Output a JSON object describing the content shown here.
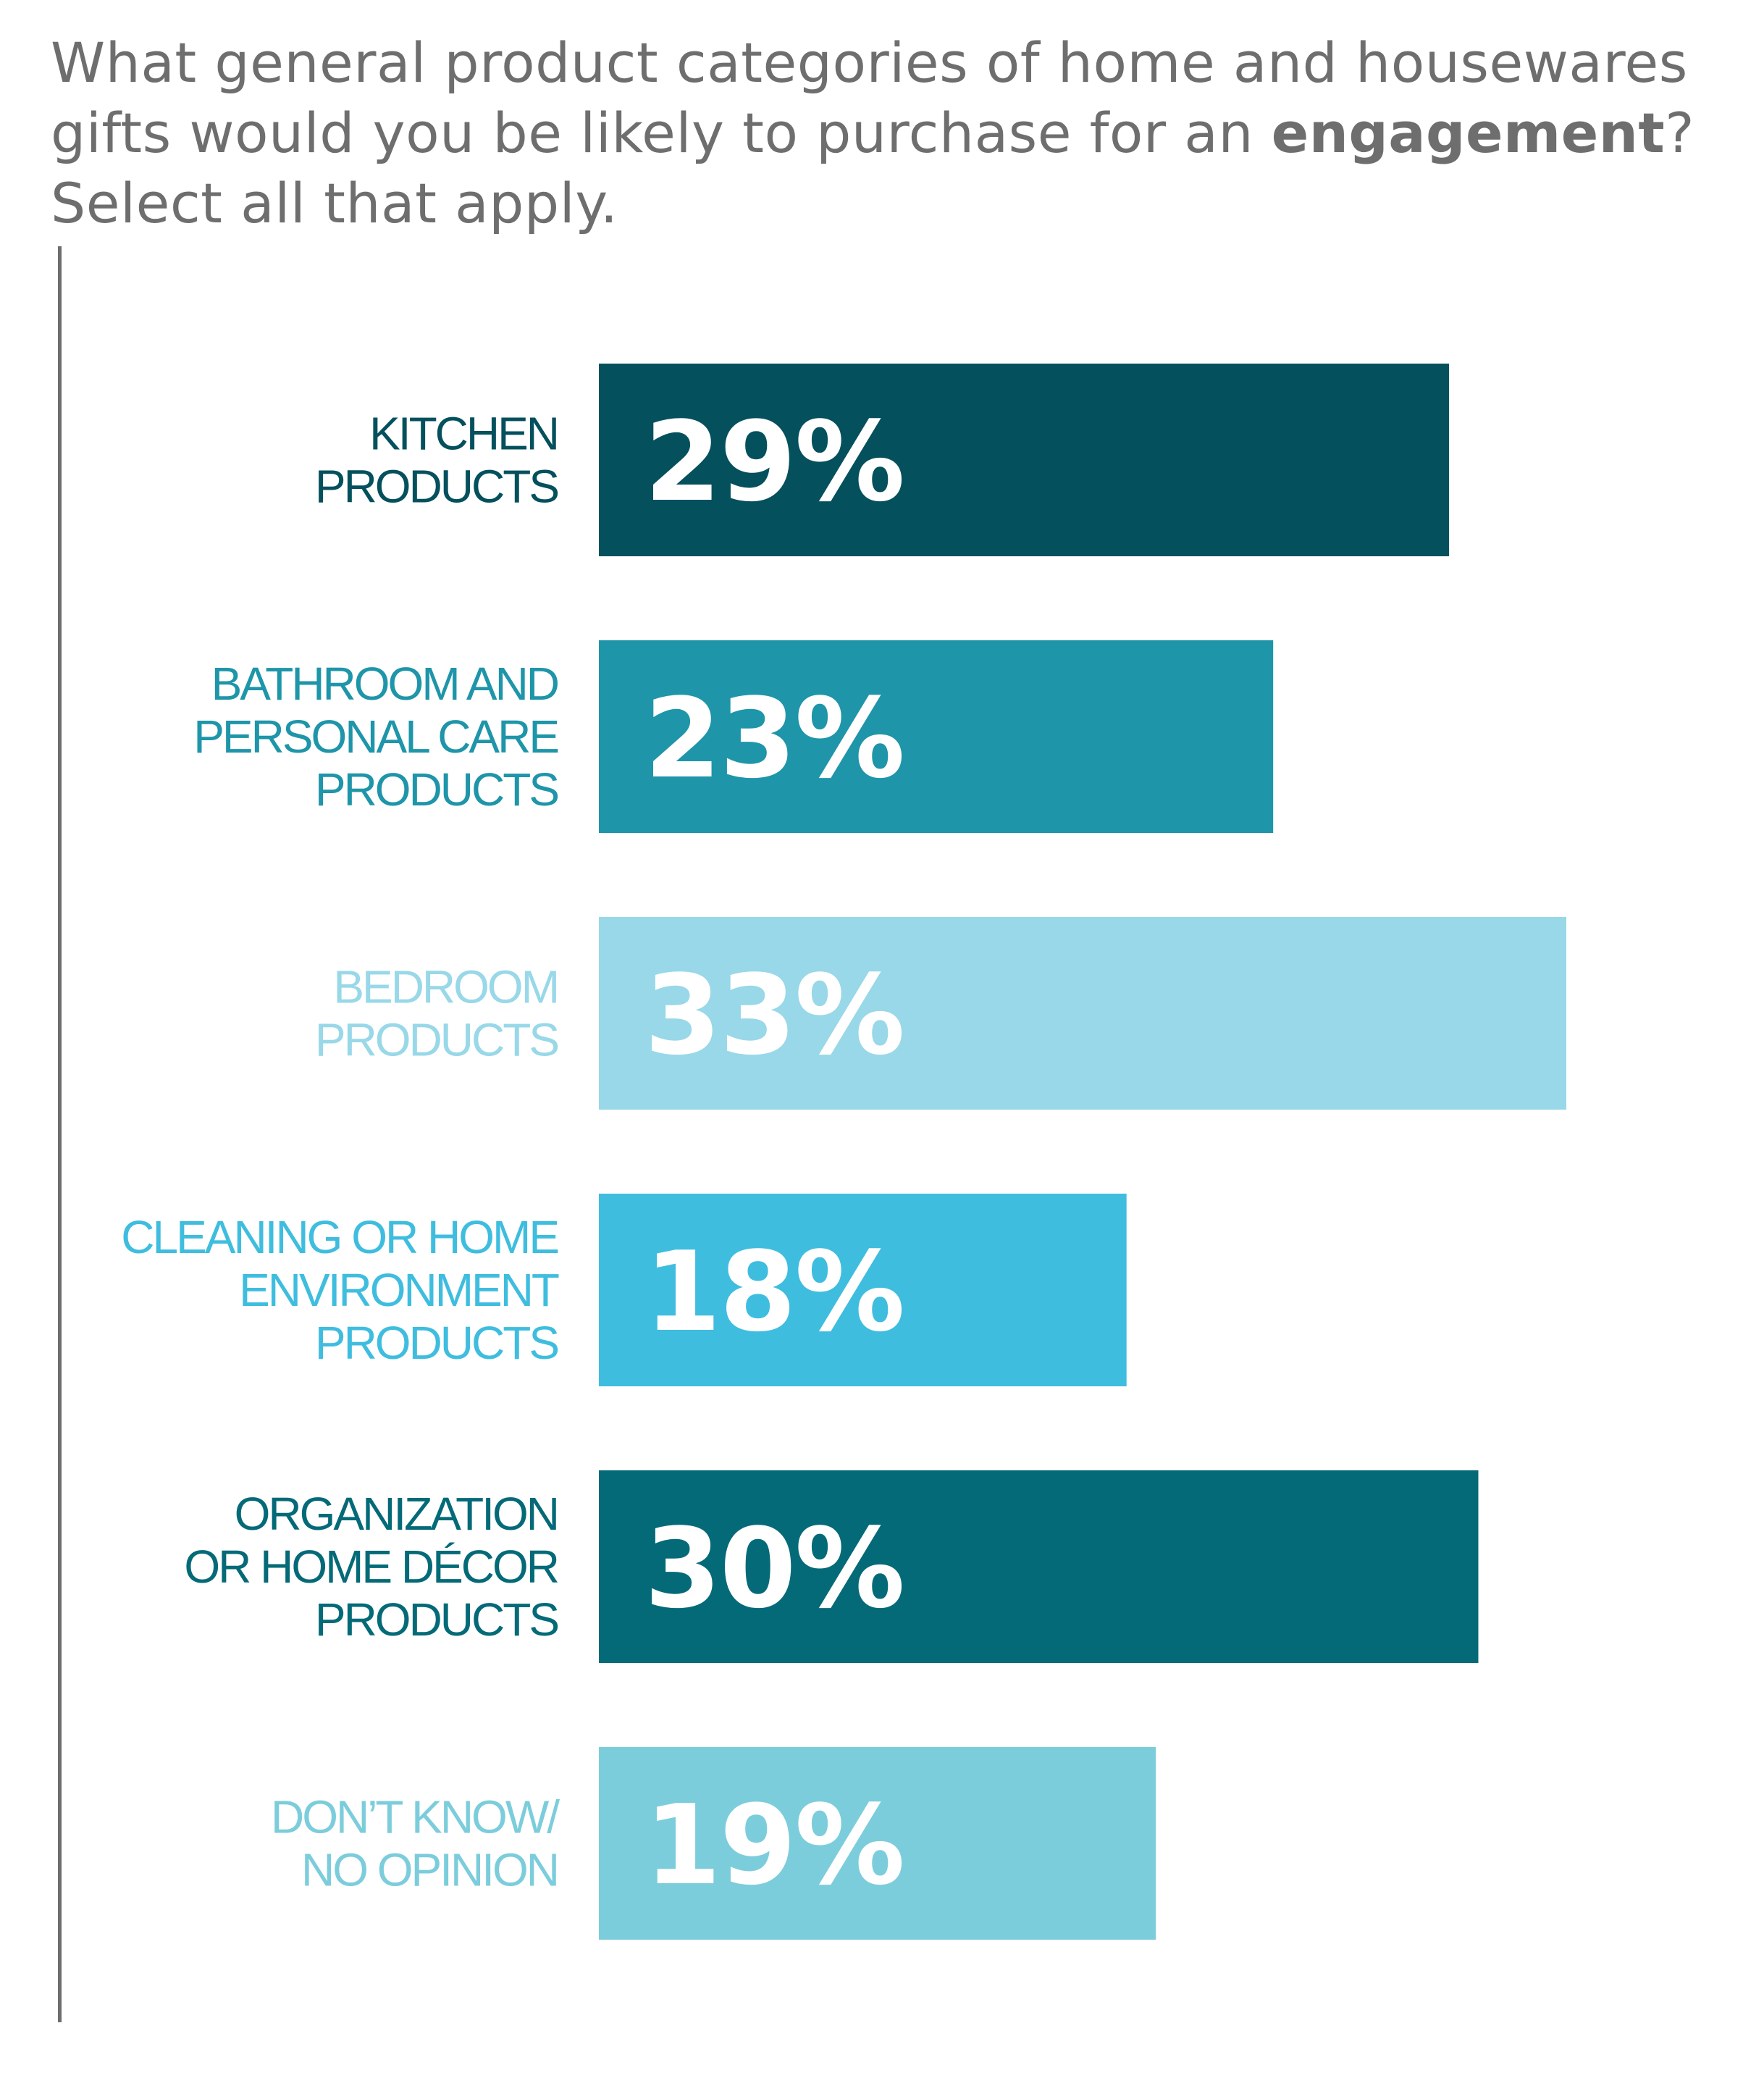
{
  "title": {
    "before": "What general product categories of home and housewares gifts would you be likely to purchase for an ",
    "bold": "engagement",
    "after": "? Select all that apply."
  },
  "chart_data": {
    "type": "bar",
    "orientation": "horizontal",
    "categories": [
      [
        "KITCHEN",
        "PRODUCTS"
      ],
      [
        "BATHROOM AND",
        "PERSONAL CARE",
        "PRODUCTS"
      ],
      [
        "BEDROOM",
        "PRODUCTS"
      ],
      [
        "CLEANING OR HOME",
        "ENVIRONMENT",
        "PRODUCTS"
      ],
      [
        "ORGANIZATION",
        "OR HOME DÉCOR",
        "PRODUCTS"
      ],
      [
        "DON’T KNOW/",
        "NO OPINION"
      ]
    ],
    "values": [
      29,
      23,
      33,
      18,
      30,
      19
    ],
    "value_labels": [
      "29%",
      "23%",
      "33%",
      "18%",
      "30%",
      "19%"
    ],
    "colors": [
      "#04505d",
      "#1e95a9",
      "#98d8e8",
      "#3fbddf",
      "#046a78",
      "#7ccddb"
    ],
    "label_colors": [
      "#04505d",
      "#1e95a9",
      "#98d8e8",
      "#3fbddf",
      "#046a78",
      "#7ccddb"
    ],
    "xlim": [
      0,
      33
    ],
    "grid": false,
    "legend": "none"
  }
}
